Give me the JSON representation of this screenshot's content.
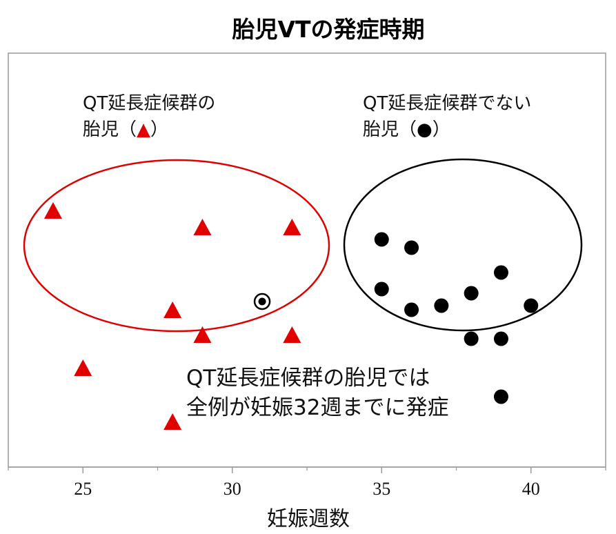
{
  "chart_data": {
    "type": "scatter",
    "title": "胎児VTの発症時期",
    "xlabel": "妊娠週数",
    "ylabel": "",
    "xlim": [
      22.5,
      42.5
    ],
    "xticks": [
      25,
      30,
      35,
      40
    ],
    "grid": false,
    "series": [
      {
        "name": "QT延長症候群の胎児（▲）",
        "marker": "triangle",
        "color": "#e00000",
        "points": [
          {
            "x": 24,
            "y": 0.62
          },
          {
            "x": 25,
            "y": 0.24
          },
          {
            "x": 28,
            "y": 0.38
          },
          {
            "x": 28,
            "y": 0.11
          },
          {
            "x": 29,
            "y": 0.58
          },
          {
            "x": 29,
            "y": 0.32
          },
          {
            "x": 32,
            "y": 0.58
          },
          {
            "x": 32,
            "y": 0.32
          }
        ]
      },
      {
        "name": "QT延長症候群でない胎児（●）",
        "marker": "circle",
        "color": "#000000",
        "points": [
          {
            "x": 35,
            "y": 0.55
          },
          {
            "x": 35,
            "y": 0.43
          },
          {
            "x": 36,
            "y": 0.53
          },
          {
            "x": 36,
            "y": 0.38
          },
          {
            "x": 37,
            "y": 0.39
          },
          {
            "x": 38,
            "y": 0.42
          },
          {
            "x": 38,
            "y": 0.31
          },
          {
            "x": 39,
            "y": 0.47
          },
          {
            "x": 39,
            "y": 0.31
          },
          {
            "x": 39,
            "y": 0.17
          },
          {
            "x": 40,
            "y": 0.39
          }
        ]
      },
      {
        "name": "",
        "marker": "circle-ring",
        "color": "#000000",
        "points": [
          {
            "x": 31,
            "y": 0.4
          }
        ]
      }
    ],
    "legend_groups": [
      {
        "line1": "QT延長症候群の",
        "line2_prefix": "胎児（",
        "symbol": "▲",
        "line2_suffix": "）",
        "symbol_color": "#e00000",
        "ellipse_color": "#e00000"
      },
      {
        "line1": "QT延長症候群でない",
        "line2_prefix": "胎児（",
        "symbol": "●",
        "line2_suffix": "）",
        "symbol_color": "#000000",
        "ellipse_color": "#000000"
      }
    ],
    "annotation": {
      "line1": "QT延長症候群の胎児では",
      "line2": "全例が妊娠32週までに発症"
    }
  }
}
